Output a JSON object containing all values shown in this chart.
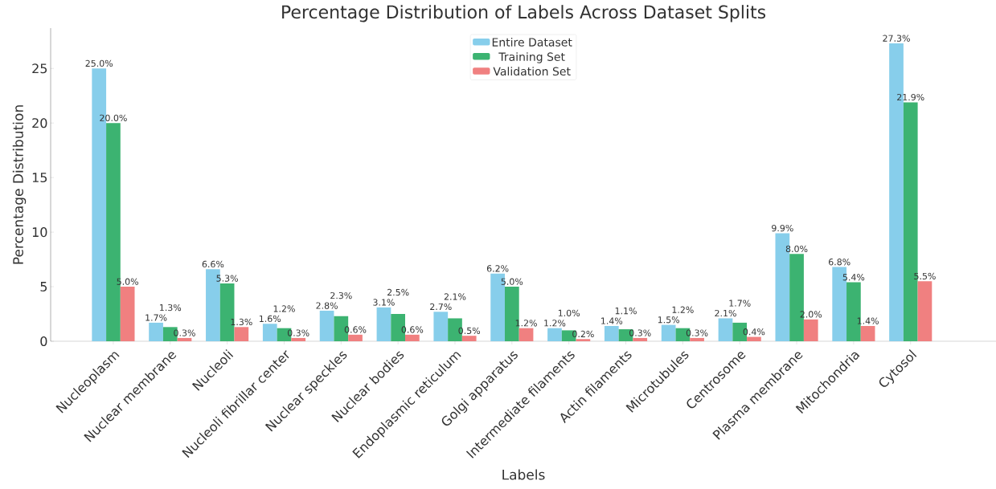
{
  "chart_data": {
    "type": "bar",
    "title": "Percentage Distribution of Labels Across Dataset Splits",
    "xlabel": "Labels",
    "ylabel": "Percentage Distribution",
    "categories": [
      "Nucleoplasm",
      "Nuclear membrane",
      "Nucleoli",
      "Nucleoli fibrillar center",
      "Nuclear speckles",
      "Nuclear bodies",
      "Endoplasmic reticulum",
      "Golgi apparatus",
      "Intermediate filaments",
      "Actin filaments",
      "Microtubules",
      "Centrosome",
      "Plasma membrane",
      "Mitochondria",
      "Cytosol"
    ],
    "series": [
      {
        "name": "Entire Dataset",
        "color": "#87ceeb",
        "values": [
          25.0,
          1.7,
          6.6,
          1.6,
          2.8,
          3.1,
          2.7,
          6.2,
          1.2,
          1.4,
          1.5,
          2.1,
          9.9,
          6.8,
          27.3
        ],
        "value_labels": [
          "25.0%",
          "1.7%",
          "6.6%",
          "1.6%",
          "2.8%",
          "3.1%",
          "2.7%",
          "6.2%",
          "1.2%",
          "1.4%",
          "1.5%",
          "2.1%",
          "9.9%",
          "6.8%",
          "27.3%"
        ]
      },
      {
        "name": "Training Set",
        "color": "#3cb371",
        "values": [
          20.0,
          1.3,
          5.3,
          1.2,
          2.3,
          2.5,
          2.1,
          5.0,
          1.0,
          1.1,
          1.2,
          1.7,
          8.0,
          5.4,
          21.9
        ],
        "value_labels": [
          "20.0%",
          "1.3%",
          "5.3%",
          "1.2%",
          "2.3%",
          "2.5%",
          "2.1%",
          "5.0%",
          "1.0%",
          "1.1%",
          "1.2%",
          "1.7%",
          "8.0%",
          "5.4%",
          "21.9%"
        ]
      },
      {
        "name": "Validation Set",
        "color": "#f08080",
        "values": [
          5.0,
          0.3,
          1.3,
          0.3,
          0.6,
          0.6,
          0.5,
          1.2,
          0.2,
          0.3,
          0.3,
          0.4,
          2.0,
          1.4,
          5.5
        ],
        "value_labels": [
          "5.0%",
          "0.3%",
          "1.3%",
          "0.3%",
          "0.6%",
          "0.6%",
          "0.5%",
          "1.2%",
          "0.2%",
          "0.3%",
          "0.3%",
          "0.4%",
          "2.0%",
          "1.4%",
          "5.5%"
        ]
      }
    ],
    "ylim": [
      0,
      28.7
    ],
    "yticks": [
      0,
      5,
      10,
      15,
      20,
      25
    ],
    "legend": "top",
    "grid": false
  }
}
